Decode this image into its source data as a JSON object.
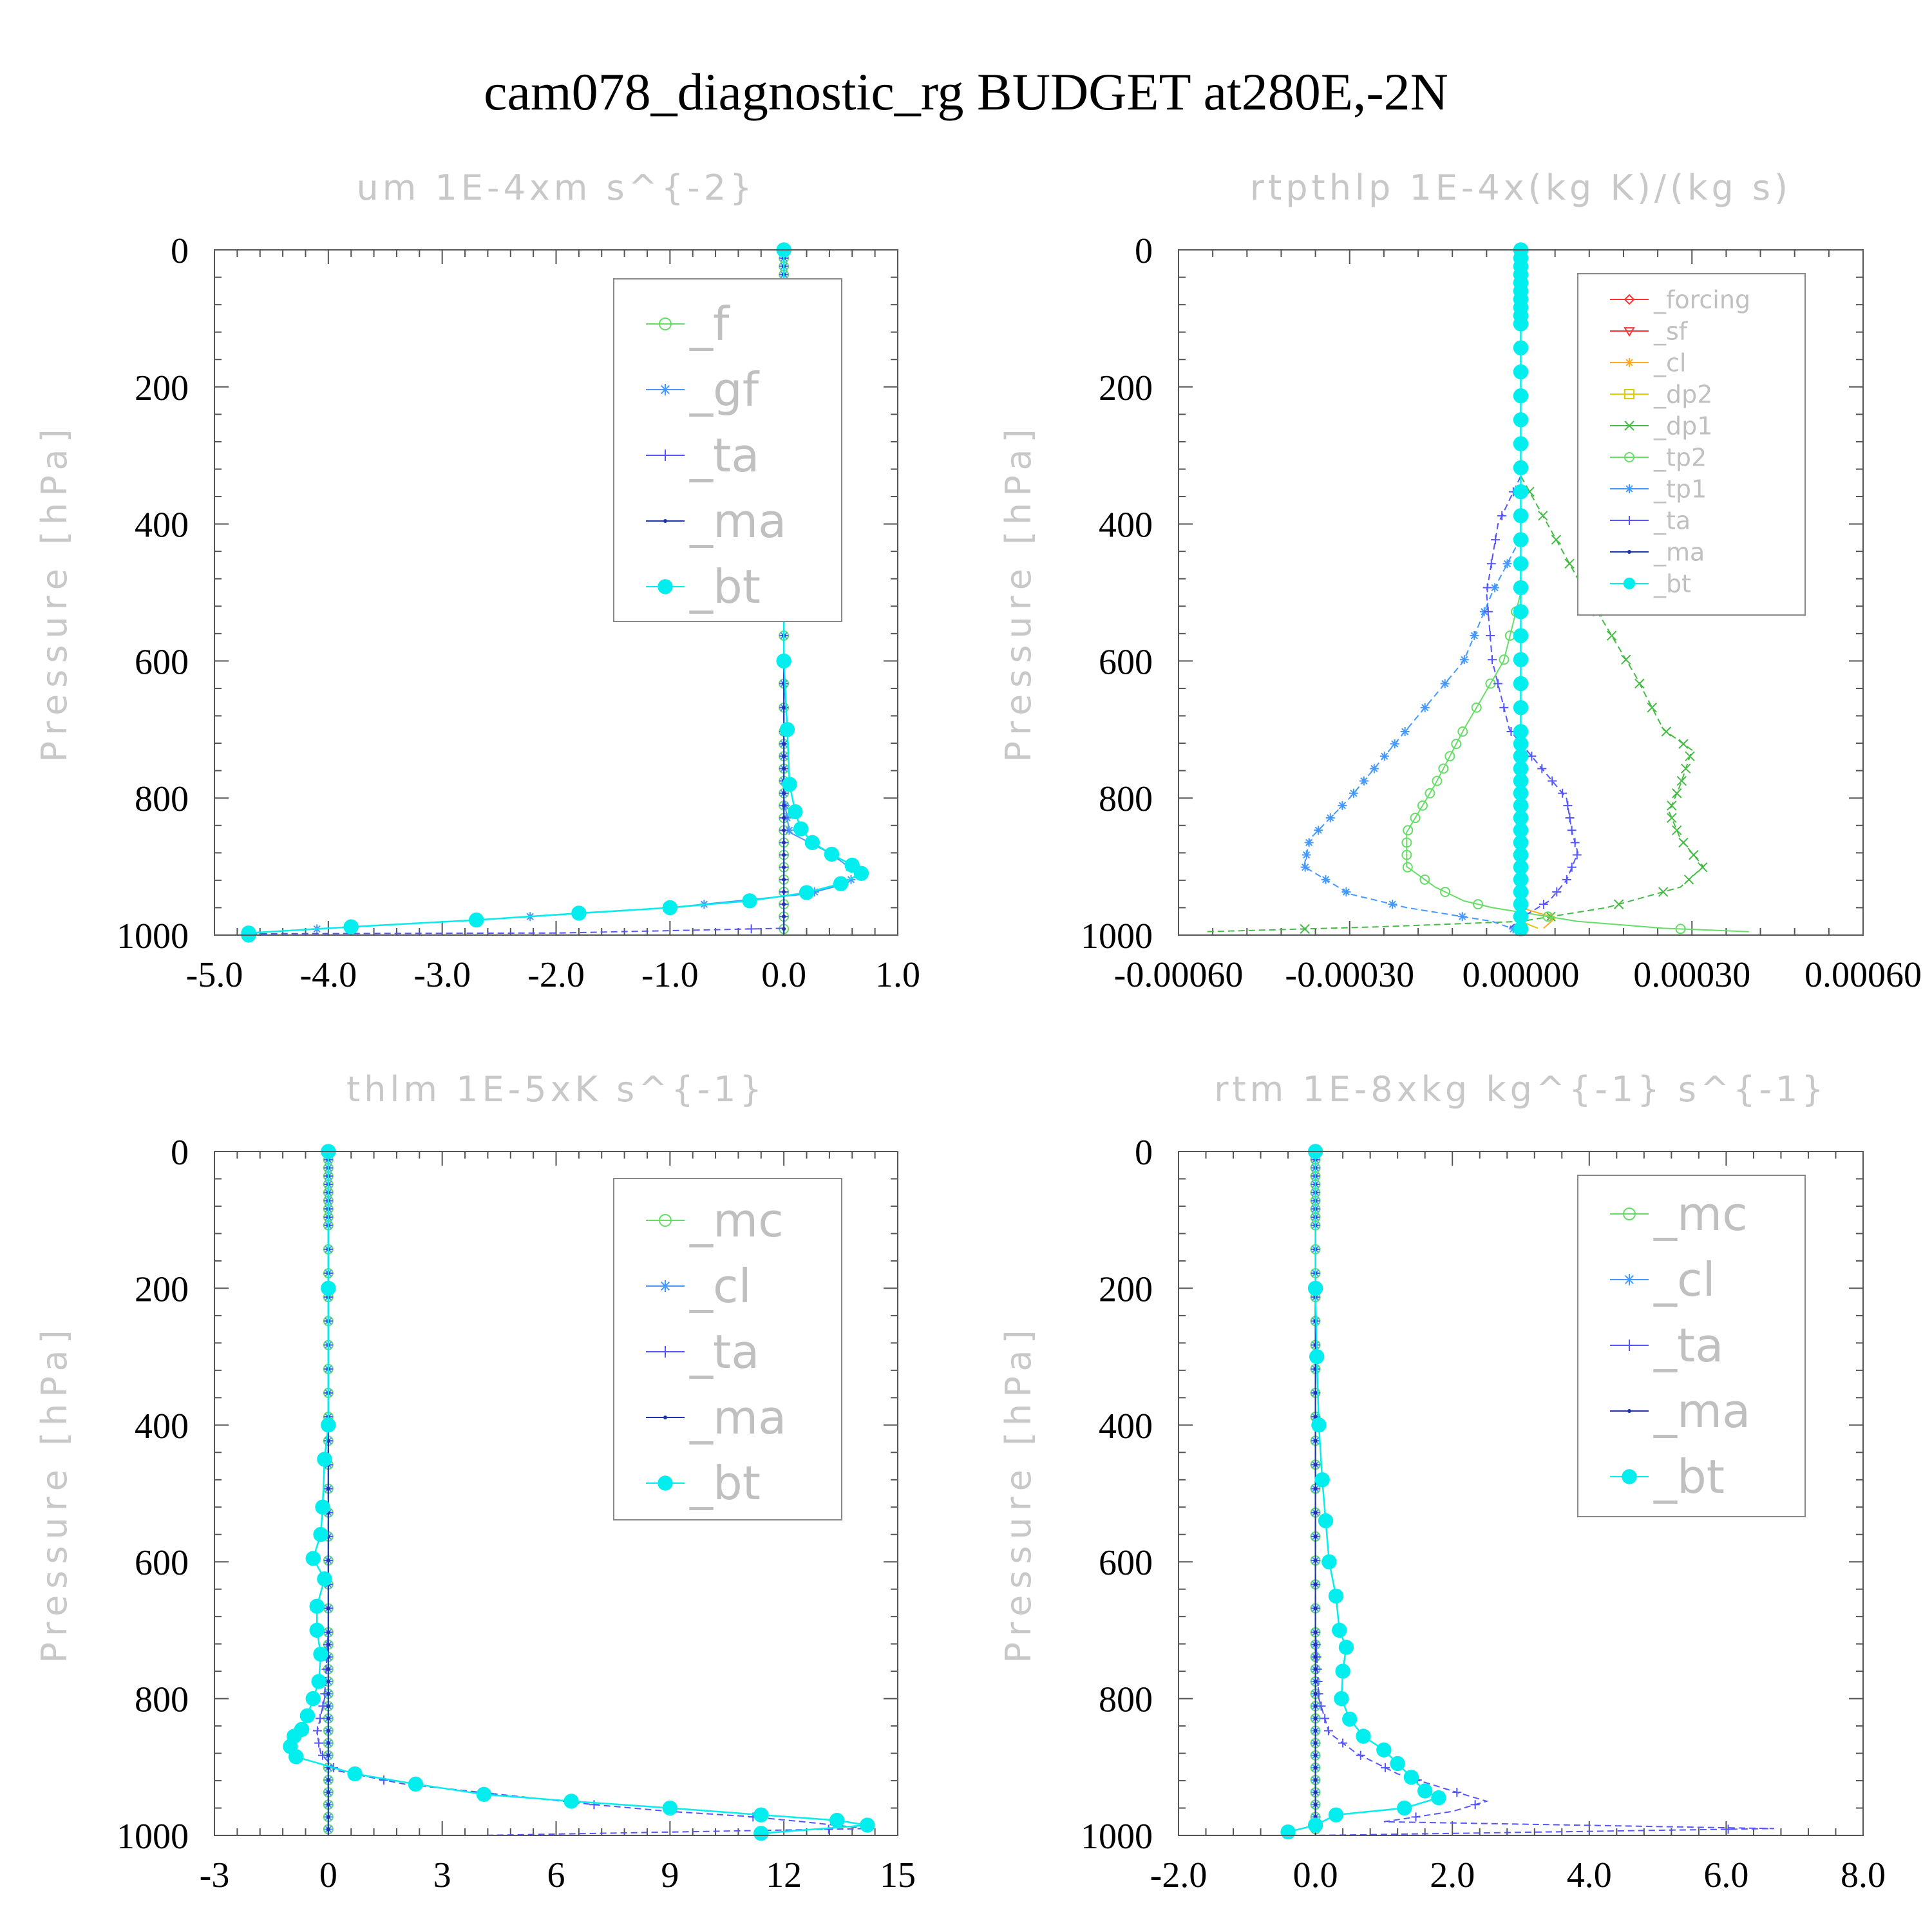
{
  "title": "cam078_diagnostic_rg  BUDGET at280E,-2N",
  "colors": {
    "_f": "#66dd66",
    "_gf": "#4499ff",
    "_ta": "#5555ff",
    "_ma": "#2233aa",
    "_bt": "#00eeee",
    "_mc": "#66dd66",
    "_cl": "#4499ff",
    "_forcing": "#ff3333",
    "_sf": "#ff3333",
    "_cl2": "#ffaa22",
    "_dp2": "#ddcc00",
    "_dp1": "#44bb44",
    "_tp2": "#66dd66",
    "_tp1": "#4499ff"
  },
  "chart_data": [
    {
      "type": "line",
      "title": "um   1E-4xm s^{-2}",
      "ylabel": "Pressure [hPa]",
      "xlim": [
        -5.0,
        1.0
      ],
      "ylim": [
        1000,
        0
      ],
      "xticks": [
        "-5.0",
        "-4.0",
        "-3.0",
        "-2.0",
        "-1.0",
        "0.0",
        "1.0"
      ],
      "yticks": [
        "0",
        "200",
        "400",
        "600",
        "800",
        "1000"
      ],
      "legend_position": "top-right",
      "series": [
        {
          "name": "_f",
          "values": []
        },
        {
          "name": "_gf",
          "values": [
            [
              0,
              0
            ],
            [
              0,
              100
            ],
            [
              0,
              200
            ],
            [
              0,
              400
            ],
            [
              0,
              600
            ],
            [
              0,
              800
            ],
            [
              0.05,
              850
            ],
            [
              0.4,
              880
            ],
            [
              0.65,
              910
            ],
            [
              0.55,
              925
            ],
            [
              0.2,
              940
            ],
            [
              -1.0,
              960
            ],
            [
              -2.7,
              978
            ],
            [
              -3.8,
              988
            ],
            [
              -4.7,
              997
            ]
          ]
        },
        {
          "name": "_ta",
          "values": [
            [
              0,
              0
            ],
            [
              0,
              800
            ],
            [
              0,
              990
            ],
            [
              -2.0,
              997
            ],
            [
              -4.7,
              998
            ]
          ]
        },
        {
          "name": "_ma",
          "values": []
        },
        {
          "name": "_bt",
          "values": [
            [
              0,
              0
            ],
            [
              0.0,
              100
            ],
            [
              -0.05,
              180
            ],
            [
              0.0,
              250
            ],
            [
              0.0,
              400
            ],
            [
              0.0,
              600
            ],
            [
              0.03,
              700
            ],
            [
              0.05,
              780
            ],
            [
              0.1,
              820
            ],
            [
              0.15,
              845
            ],
            [
              0.25,
              865
            ],
            [
              0.42,
              882
            ],
            [
              0.6,
              898
            ],
            [
              0.68,
              910
            ],
            [
              0.5,
              925
            ],
            [
              0.2,
              938
            ],
            [
              -0.3,
              950
            ],
            [
              -1.0,
              960
            ],
            [
              -1.8,
              968
            ],
            [
              -2.7,
              978
            ],
            [
              -3.8,
              988
            ],
            [
              -4.7,
              997
            ],
            [
              -4.7,
              1000
            ]
          ]
        }
      ]
    },
    {
      "type": "line",
      "title": "rtpthlp   1E-4x(kg K)/(kg s)",
      "ylabel": "Pressure [hPa]",
      "xlim": [
        -0.0006,
        0.0006
      ],
      "ylim": [
        1000,
        0
      ],
      "xticks": [
        "-0.00060",
        "-0.00030",
        "0.00000",
        "0.00030",
        "0.00060"
      ],
      "yticks": [
        "0",
        "200",
        "400",
        "600",
        "800",
        "1000"
      ],
      "legend_position": "top-right",
      "series": [
        {
          "name": "_forcing",
          "values": []
        },
        {
          "name": "_sf",
          "values": []
        },
        {
          "name": "_cl",
          "values": [
            [
              0,
              0
            ],
            [
              0,
              960
            ],
            [
              6e-05,
              975
            ],
            [
              4e-05,
              990
            ]
          ]
        },
        {
          "name": "_dp2",
          "values": [
            [
              0,
              0
            ],
            [
              0,
              980
            ],
            [
              3e-05,
              990
            ]
          ]
        },
        {
          "name": "_dp1",
          "values": [
            [
              0,
              0
            ],
            [
              0,
              330
            ],
            [
              2e-05,
              360
            ],
            [
              6e-05,
              420
            ],
            [
              0.0001,
              480
            ],
            [
              0.00015,
              550
            ],
            [
              0.0002,
              620
            ],
            [
              0.00025,
              700
            ],
            [
              0.0003,
              730
            ],
            [
              0.00028,
              780
            ],
            [
              0.00026,
              820
            ],
            [
              0.00028,
              860
            ],
            [
              0.00032,
              900
            ],
            [
              0.00028,
              930
            ],
            [
              0.00015,
              960
            ],
            [
              0.0,
              980
            ],
            [
              -0.00025,
              988
            ],
            [
              -0.00055,
              995
            ]
          ]
        },
        {
          "name": "_tp2",
          "values": [
            [
              0,
              0
            ],
            [
              0,
              500
            ],
            [
              -3e-05,
              600
            ],
            [
              -0.0001,
              700
            ],
            [
              -0.00015,
              780
            ],
            [
              -0.0002,
              850
            ],
            [
              -0.0002,
              900
            ],
            [
              -0.00015,
              930
            ],
            [
              -0.0001,
              950
            ],
            [
              -5e-05,
              960
            ],
            [
              0.0001,
              980
            ],
            [
              0.00025,
              990
            ],
            [
              0.0004,
              995
            ]
          ]
        },
        {
          "name": "_tp1",
          "values": [
            [
              0,
              0
            ],
            [
              0,
              420
            ],
            [
              -5e-05,
              500
            ],
            [
              -0.0001,
              600
            ],
            [
              -0.0002,
              700
            ],
            [
              -0.0003,
              800
            ],
            [
              -0.00037,
              860
            ],
            [
              -0.00038,
              900
            ],
            [
              -0.0003,
              940
            ],
            [
              -0.0002,
              960
            ],
            [
              -5e-05,
              980
            ],
            [
              0,
              995
            ]
          ]
        },
        {
          "name": "_ta",
          "values": [
            [
              0,
              0
            ],
            [
              0,
              330
            ],
            [
              -4e-05,
              400
            ],
            [
              -6e-05,
              500
            ],
            [
              -5e-05,
              600
            ],
            [
              -2e-05,
              700
            ],
            [
              3e-05,
              750
            ],
            [
              8e-05,
              800
            ],
            [
              9e-05,
              850
            ],
            [
              0.0001,
              880
            ],
            [
              8e-05,
              920
            ],
            [
              5e-05,
              950
            ],
            [
              1e-05,
              970
            ],
            [
              -2e-05,
              990
            ]
          ]
        },
        {
          "name": "_ma",
          "values": []
        },
        {
          "name": "_bt",
          "values": [
            [
              0,
              0
            ],
            [
              0,
              1000
            ]
          ]
        }
      ]
    },
    {
      "type": "line",
      "title": "thlm   1E-5xK s^{-1}",
      "ylabel": "Pressure [hPa]",
      "xlim": [
        -3,
        15
      ],
      "ylim": [
        1000,
        0
      ],
      "xticks": [
        "-3",
        "0",
        "3",
        "6",
        "9",
        "12",
        "15"
      ],
      "yticks": [
        "0",
        "200",
        "400",
        "600",
        "800",
        "1000"
      ],
      "legend_position": "top-right",
      "series": [
        {
          "name": "_mc",
          "values": []
        },
        {
          "name": "_cl",
          "values": []
        },
        {
          "name": "_ta",
          "values": [
            [
              0,
              0
            ],
            [
              0,
              700
            ],
            [
              -0.1,
              800
            ],
            [
              -0.3,
              850
            ],
            [
              -0.2,
              880
            ],
            [
              0.2,
              905
            ],
            [
              2.0,
              925
            ],
            [
              4.5,
              940
            ],
            [
              7.0,
              955
            ],
            [
              9.0,
              965
            ],
            [
              11.0,
              972
            ],
            [
              12.5,
              980
            ],
            [
              14.2,
              990
            ],
            [
              4,
              1000
            ]
          ]
        },
        {
          "name": "_ma",
          "values": []
        },
        {
          "name": "_bt",
          "values": [
            [
              0,
              0
            ],
            [
              0,
              200
            ],
            [
              0,
              400
            ],
            [
              -0.1,
              450
            ],
            [
              -0.15,
              520
            ],
            [
              -0.2,
              560
            ],
            [
              -0.4,
              595
            ],
            [
              -0.1,
              625
            ],
            [
              -0.3,
              665
            ],
            [
              -0.3,
              700
            ],
            [
              -0.2,
              735
            ],
            [
              -0.25,
              775
            ],
            [
              -0.4,
              800
            ],
            [
              -0.55,
              825
            ],
            [
              -0.7,
              845
            ],
            [
              -0.9,
              855
            ],
            [
              -1.0,
              870
            ],
            [
              -0.85,
              885
            ],
            [
              0.7,
              910
            ],
            [
              2.3,
              925
            ],
            [
              4.1,
              940
            ],
            [
              6.4,
              950
            ],
            [
              9.0,
              960
            ],
            [
              11.4,
              970
            ],
            [
              13.4,
              978
            ],
            [
              14.2,
              985
            ],
            [
              11.4,
              997
            ]
          ]
        }
      ]
    },
    {
      "type": "line",
      "title": "rtm   1E-8xkg kg^{-1} s^{-1}",
      "ylabel": "Pressure [hPa]",
      "xlim": [
        -2.0,
        8.0
      ],
      "ylim": [
        1000,
        0
      ],
      "xticks": [
        "-2.0",
        "0.0",
        "2.0",
        "4.0",
        "6.0",
        "8.0"
      ],
      "yticks": [
        "0",
        "200",
        "400",
        "600",
        "800",
        "1000"
      ],
      "legend_position": "top-right",
      "series": [
        {
          "name": "_mc",
          "values": []
        },
        {
          "name": "_cl",
          "values": []
        },
        {
          "name": "_ta",
          "values": [
            [
              0,
              0
            ],
            [
              0,
              700
            ],
            [
              0.05,
              800
            ],
            [
              0.2,
              850
            ],
            [
              0.6,
              880
            ],
            [
              1.2,
              910
            ],
            [
              2.0,
              935
            ],
            [
              2.5,
              950
            ],
            [
              2.0,
              965
            ],
            [
              1.0,
              980
            ],
            [
              6.7,
              990
            ],
            [
              0,
              1000
            ]
          ]
        },
        {
          "name": "_ma",
          "values": []
        },
        {
          "name": "_bt",
          "values": [
            [
              0,
              0
            ],
            [
              0,
              200
            ],
            [
              0.02,
              300
            ],
            [
              0.05,
              400
            ],
            [
              0.1,
              480
            ],
            [
              0.15,
              540
            ],
            [
              0.2,
              600
            ],
            [
              0.3,
              650
            ],
            [
              0.35,
              700
            ],
            [
              0.45,
              725
            ],
            [
              0.4,
              760
            ],
            [
              0.38,
              800
            ],
            [
              0.5,
              830
            ],
            [
              0.7,
              855
            ],
            [
              1.0,
              875
            ],
            [
              1.2,
              895
            ],
            [
              1.4,
              915
            ],
            [
              1.6,
              935
            ],
            [
              1.8,
              945
            ],
            [
              1.3,
              960
            ],
            [
              0.3,
              970
            ],
            [
              0.0,
              985
            ],
            [
              -0.4,
              995
            ]
          ]
        }
      ]
    }
  ],
  "legends": [
    [
      "_f",
      "_gf",
      "_ta",
      "_ma",
      "_bt"
    ],
    [
      "_forcing",
      "_sf",
      "_cl",
      "_dp2",
      "_dp1",
      "_tp2",
      "_tp1",
      "_ta",
      "_ma",
      "_bt"
    ],
    [
      "_mc",
      "_cl",
      "_ta",
      "_ma",
      "_bt"
    ],
    [
      "_mc",
      "_cl",
      "_ta",
      "_ma",
      "_bt"
    ]
  ]
}
